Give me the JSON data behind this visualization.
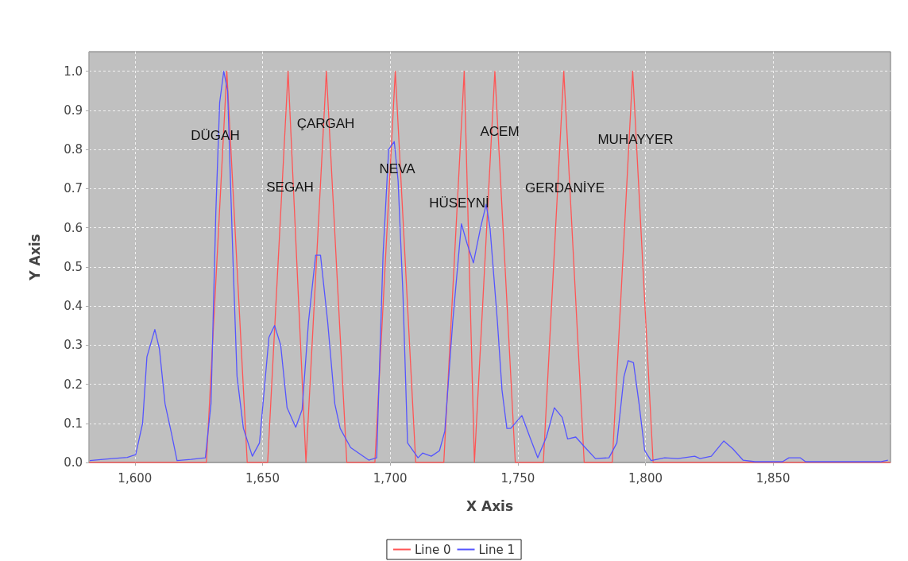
{
  "chart_data": {
    "type": "line",
    "xlabel": "X Axis",
    "ylabel": "Y Axis",
    "xlim": [
      1582,
      1896
    ],
    "ylim": [
      0,
      1.05
    ],
    "xticks": [
      {
        "value": 1600,
        "label": "1,600"
      },
      {
        "value": 1650,
        "label": "1,650"
      },
      {
        "value": 1700,
        "label": "1,700"
      },
      {
        "value": 1750,
        "label": "1,750"
      },
      {
        "value": 1800,
        "label": "1,800"
      },
      {
        "value": 1850,
        "label": "1,850"
      }
    ],
    "yticks": [
      {
        "value": 0,
        "label": "0.0"
      },
      {
        "value": 0.1,
        "label": "0.1"
      },
      {
        "value": 0.2,
        "label": "0.2"
      },
      {
        "value": 0.3,
        "label": "0.3"
      },
      {
        "value": 0.4,
        "label": "0.4"
      },
      {
        "value": 0.5,
        "label": "0.5"
      },
      {
        "value": 0.6,
        "label": "0.6"
      },
      {
        "value": 0.7,
        "label": "0.7"
      },
      {
        "value": 0.8,
        "label": "0.8"
      },
      {
        "value": 0.9,
        "label": "0.9"
      },
      {
        "value": 1,
        "label": "1.0"
      }
    ],
    "grid": true,
    "legend": "bottom",
    "marker": "none",
    "line_style": "solid",
    "series": [
      {
        "name": "Line 0",
        "color": "#ff5555",
        "x": [
          1582,
          1628,
          1636,
          1644,
          1652,
          1660,
          1667,
          1675,
          1683,
          1694,
          1702,
          1710,
          1721,
          1729,
          1733,
          1741,
          1749,
          1760,
          1768,
          1776,
          1787,
          1795,
          1803,
          1896
        ],
        "values": [
          0,
          0,
          1,
          0,
          0,
          1,
          0,
          1,
          0,
          0,
          1,
          0,
          0,
          1,
          0,
          1,
          0,
          0,
          1,
          0,
          0,
          1,
          0,
          0
        ]
      },
      {
        "name": "Line 1",
        "color": "#5555ff",
        "x": [
          1582.3,
          1591,
          1597,
          1600.3,
          1603,
          1604.7,
          1607.8,
          1609.6,
          1611.8,
          1614.3,
          1616.5,
          1622,
          1627.6,
          1629.8,
          1631.7,
          1633.2,
          1634.8,
          1636.3,
          1638.5,
          1640,
          1642.5,
          1646,
          1648.8,
          1652.5,
          1654.7,
          1657.1,
          1659.6,
          1663,
          1665.5,
          1668,
          1670.8,
          1672.7,
          1675.5,
          1678.3,
          1680.4,
          1684.5,
          1691.6,
          1694.7,
          1697.2,
          1699.4,
          1701.6,
          1703.1,
          1705,
          1706.8,
          1710.9,
          1712.7,
          1716.1,
          1719.3,
          1721.4,
          1724.5,
          1727.9,
          1730.1,
          1732.6,
          1735.4,
          1737.6,
          1739.1,
          1742,
          1743.8,
          1745.7,
          1747.2,
          1751.6,
          1754.7,
          1757.8,
          1761.2,
          1764.3,
          1767.4,
          1769.5,
          1772.7,
          1776.1,
          1780.4,
          1785.7,
          1788.8,
          1791.6,
          1793.2,
          1795.3,
          1797.5,
          1799.7,
          1802.2,
          1807.5,
          1812.7,
          1819.3,
          1821.4,
          1825.8,
          1830.7,
          1834.2,
          1838.2,
          1842.9,
          1853.7,
          1856.2,
          1860.6,
          1862.7,
          1892,
          1895
        ],
        "values": [
          0.005,
          0.01,
          0.013,
          0.02,
          0.1,
          0.27,
          0.34,
          0.29,
          0.15,
          0.075,
          0.005,
          0.008,
          0.012,
          0.15,
          0.64,
          0.92,
          1.0,
          0.95,
          0.5,
          0.22,
          0.087,
          0.016,
          0.05,
          0.32,
          0.35,
          0.3,
          0.14,
          0.09,
          0.135,
          0.36,
          0.53,
          0.53,
          0.36,
          0.15,
          0.087,
          0.038,
          0.006,
          0.012,
          0.53,
          0.8,
          0.82,
          0.72,
          0.43,
          0.05,
          0.012,
          0.024,
          0.016,
          0.03,
          0.08,
          0.36,
          0.61,
          0.56,
          0.51,
          0.6,
          0.66,
          0.6,
          0.36,
          0.185,
          0.087,
          0.087,
          0.12,
          0.065,
          0.012,
          0.065,
          0.14,
          0.115,
          0.06,
          0.065,
          0.04,
          0.01,
          0.012,
          0.05,
          0.22,
          0.26,
          0.255,
          0.15,
          0.03,
          0.005,
          0.012,
          0.01,
          0.016,
          0.01,
          0.016,
          0.055,
          0.035,
          0.006,
          0.002,
          0.002,
          0.012,
          0.012,
          0.002,
          0.002,
          0.006
        ]
      }
    ],
    "annotations": [
      "DÜGAH",
      "SEGAH",
      "ÇARGAH",
      "NEVA",
      "HÜSEYNİ",
      "ACEM",
      "GERDANİYE",
      "MUHAYYER"
    ]
  }
}
